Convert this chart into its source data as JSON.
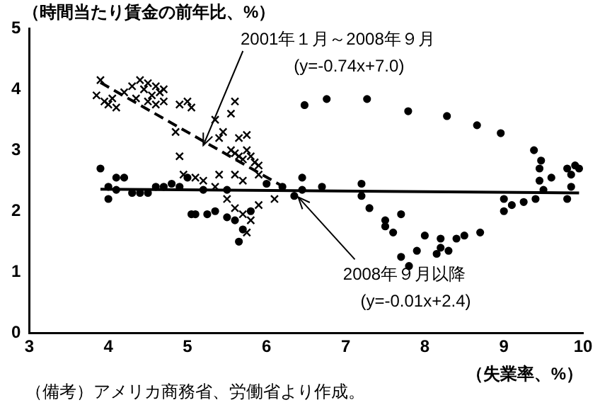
{
  "chart_data": {
    "type": "scatter",
    "ylabel": "（時間当たり賃金の前年比、%）",
    "xlabel": "（失業率、%）",
    "xlim": [
      3,
      10
    ],
    "ylim": [
      0,
      5
    ],
    "xticks": [
      3,
      4,
      5,
      6,
      7,
      8,
      9,
      10
    ],
    "yticks": [
      0,
      1,
      2,
      3,
      4,
      5
    ],
    "grid": false,
    "legend": false,
    "series": [
      {
        "type": "scatter",
        "marker": "cross",
        "color": "#000000",
        "x": [
          3.9,
          3.85,
          3.95,
          4.0,
          4.05,
          4.1,
          4.2,
          4.3,
          4.35,
          4.4,
          4.45,
          4.5,
          4.55,
          4.6,
          4.65,
          4.7,
          4.5,
          4.6,
          4.7,
          4.9,
          5.0,
          5.05,
          4.85,
          4.9,
          4.95,
          5.1,
          5.2,
          5.35,
          5.4,
          5.45,
          5.55,
          5.6,
          5.55,
          5.6,
          5.65,
          5.7,
          5.75,
          5.8,
          5.85,
          5.9,
          5.65,
          5.75,
          5.6,
          5.7,
          5.9,
          5.35,
          5.5,
          5.6,
          5.7,
          5.8,
          5.75,
          5.9,
          5.4,
          6.1
        ],
        "values": [
          4.15,
          3.9,
          3.8,
          3.75,
          3.85,
          3.7,
          3.95,
          4.05,
          3.85,
          4.15,
          4.0,
          4.1,
          3.9,
          4.05,
          3.95,
          4.0,
          3.8,
          3.75,
          3.8,
          3.75,
          3.8,
          3.7,
          3.3,
          2.9,
          2.6,
          2.55,
          2.5,
          3.5,
          3.2,
          3.3,
          3.6,
          3.8,
          3.0,
          2.95,
          2.9,
          2.85,
          3.0,
          2.9,
          2.8,
          2.75,
          3.2,
          3.25,
          2.6,
          2.5,
          2.6,
          2.4,
          2.2,
          2.05,
          1.95,
          1.85,
          1.65,
          2.1,
          2.6,
          2.2
        ]
      },
      {
        "type": "scatter",
        "marker": "circle",
        "color": "#000000",
        "x": [
          3.9,
          4.0,
          4.0,
          4.1,
          4.2,
          4.1,
          4.3,
          4.4,
          4.5,
          4.6,
          4.7,
          4.8,
          4.9,
          5.0,
          5.2,
          5.5,
          6.0,
          6.2,
          5.05,
          5.1,
          5.25,
          5.35,
          5.5,
          5.6,
          5.7,
          5.65,
          5.8,
          6.35,
          6.45,
          6.45,
          6.7,
          7.2,
          7.2,
          7.3,
          7.5,
          7.5,
          7.6,
          7.7,
          7.7,
          7.8,
          7.9,
          8.0,
          8.2,
          8.2,
          8.15,
          8.3,
          8.4,
          8.5,
          8.7,
          9.0,
          9.0,
          9.1,
          9.25,
          9.4,
          9.45,
          9.45,
          9.5,
          9.6,
          9.8,
          9.85,
          9.9,
          9.85,
          9.95,
          6.48,
          6.76,
          7.27,
          7.79,
          8.28,
          8.66,
          8.96,
          9.38,
          9.47,
          9.8
        ],
        "values": [
          2.7,
          2.4,
          2.2,
          2.55,
          2.55,
          2.35,
          2.3,
          2.3,
          2.3,
          2.4,
          2.4,
          2.45,
          2.4,
          2.55,
          2.35,
          2.35,
          2.45,
          2.4,
          1.95,
          1.95,
          1.95,
          2.0,
          1.9,
          1.85,
          1.7,
          1.5,
          2.0,
          2.25,
          2.35,
          2.55,
          2.4,
          2.45,
          2.25,
          2.05,
          1.85,
          1.75,
          1.65,
          1.95,
          1.25,
          1.1,
          1.35,
          1.6,
          1.4,
          1.55,
          1.3,
          1.35,
          1.55,
          1.6,
          1.65,
          2.0,
          2.2,
          2.1,
          2.15,
          2.2,
          2.5,
          2.7,
          2.35,
          2.55,
          2.2,
          2.6,
          2.75,
          2.4,
          2.7,
          3.74,
          3.84,
          3.84,
          3.64,
          3.56,
          3.41,
          3.28,
          3.0,
          2.83,
          2.7
        ]
      },
      {
        "type": "line",
        "line_style": "dashed",
        "marker": "none",
        "color": "#000000",
        "x": [
          3.9,
          6.2
        ],
        "values": [
          4.11,
          2.41
        ]
      },
      {
        "type": "line",
        "line_style": "solid",
        "marker": "none",
        "color": "#000000",
        "x": [
          3.9,
          9.95
        ],
        "values": [
          2.36,
          2.3
        ]
      }
    ],
    "annotations": [
      {
        "text": "2001年１月～2008年９月\n(y=-0.74x+7.0)",
        "x": 5.2,
        "y": 3.15
      },
      {
        "text": "2008年９月以降\n(y=-0.01x+2.4)",
        "x": 6.4,
        "y": 2.3
      },
      "（備考）アメリカ商務省、労働省より作成。"
    ]
  }
}
